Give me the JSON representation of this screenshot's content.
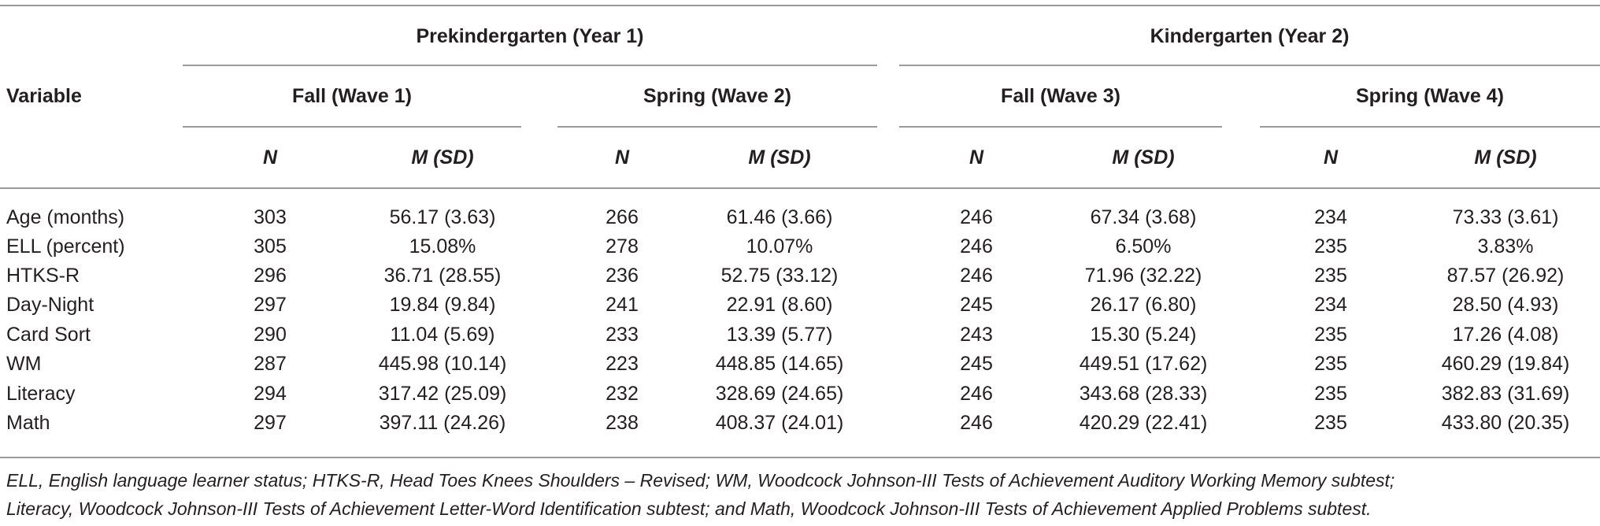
{
  "table": {
    "variable_header": "Variable",
    "year_groups": [
      "Prekindergarten (Year 1)",
      "Kindergarten (Year 2)"
    ],
    "waves": [
      "Fall (Wave 1)",
      "Spring (Wave 2)",
      "Fall (Wave 3)",
      "Spring (Wave 4)"
    ],
    "col_n": "N",
    "col_m": "M",
    "col_sd": "(SD)",
    "rows": [
      {
        "label": "Age (months)",
        "cells": [
          "303",
          "56.17 (3.63)",
          "266",
          "61.46 (3.66)",
          "246",
          "67.34 (3.68)",
          "234",
          "73.33 (3.61)"
        ]
      },
      {
        "label": "ELL (percent)",
        "cells": [
          "305",
          "15.08%",
          "278",
          "10.07%",
          "246",
          "6.50%",
          "235",
          "3.83%"
        ]
      },
      {
        "label": "HTKS-R",
        "cells": [
          "296",
          "36.71 (28.55)",
          "236",
          "52.75 (33.12)",
          "246",
          "71.96 (32.22)",
          "235",
          "87.57 (26.92)"
        ]
      },
      {
        "label": "Day-Night",
        "cells": [
          "297",
          "19.84 (9.84)",
          "241",
          "22.91 (8.60)",
          "245",
          "26.17 (6.80)",
          "234",
          "28.50 (4.93)"
        ]
      },
      {
        "label": "Card Sort",
        "cells": [
          "290",
          "11.04 (5.69)",
          "233",
          "13.39 (5.77)",
          "243",
          "15.30 (5.24)",
          "235",
          "17.26 (4.08)"
        ]
      },
      {
        "label": "WM",
        "cells": [
          "287",
          "445.98 (10.14)",
          "223",
          "448.85 (14.65)",
          "245",
          "449.51 (17.62)",
          "235",
          "460.29 (19.84)"
        ]
      },
      {
        "label": "Literacy",
        "cells": [
          "294",
          "317.42 (25.09)",
          "232",
          "328.69 (24.65)",
          "246",
          "343.68 (28.33)",
          "235",
          "382.83 (31.69)"
        ]
      },
      {
        "label": "Math",
        "cells": [
          "297",
          "397.11 (24.26)",
          "238",
          "408.37 (24.01)",
          "246",
          "420.29 (22.41)",
          "235",
          "433.80 (20.35)"
        ]
      }
    ]
  },
  "footnote": {
    "line1": "ELL, English language learner status; HTKS-R, Head Toes Knees Shoulders – Revised; WM, Woodcock Johnson-III Tests of Achievement Auditory Working Memory subtest;",
    "line2": "Literacy, Woodcock Johnson-III Tests of Achievement Letter-Word Identification subtest; and Math, Woodcock Johnson-III Tests of Achievement Applied Problems subtest."
  }
}
